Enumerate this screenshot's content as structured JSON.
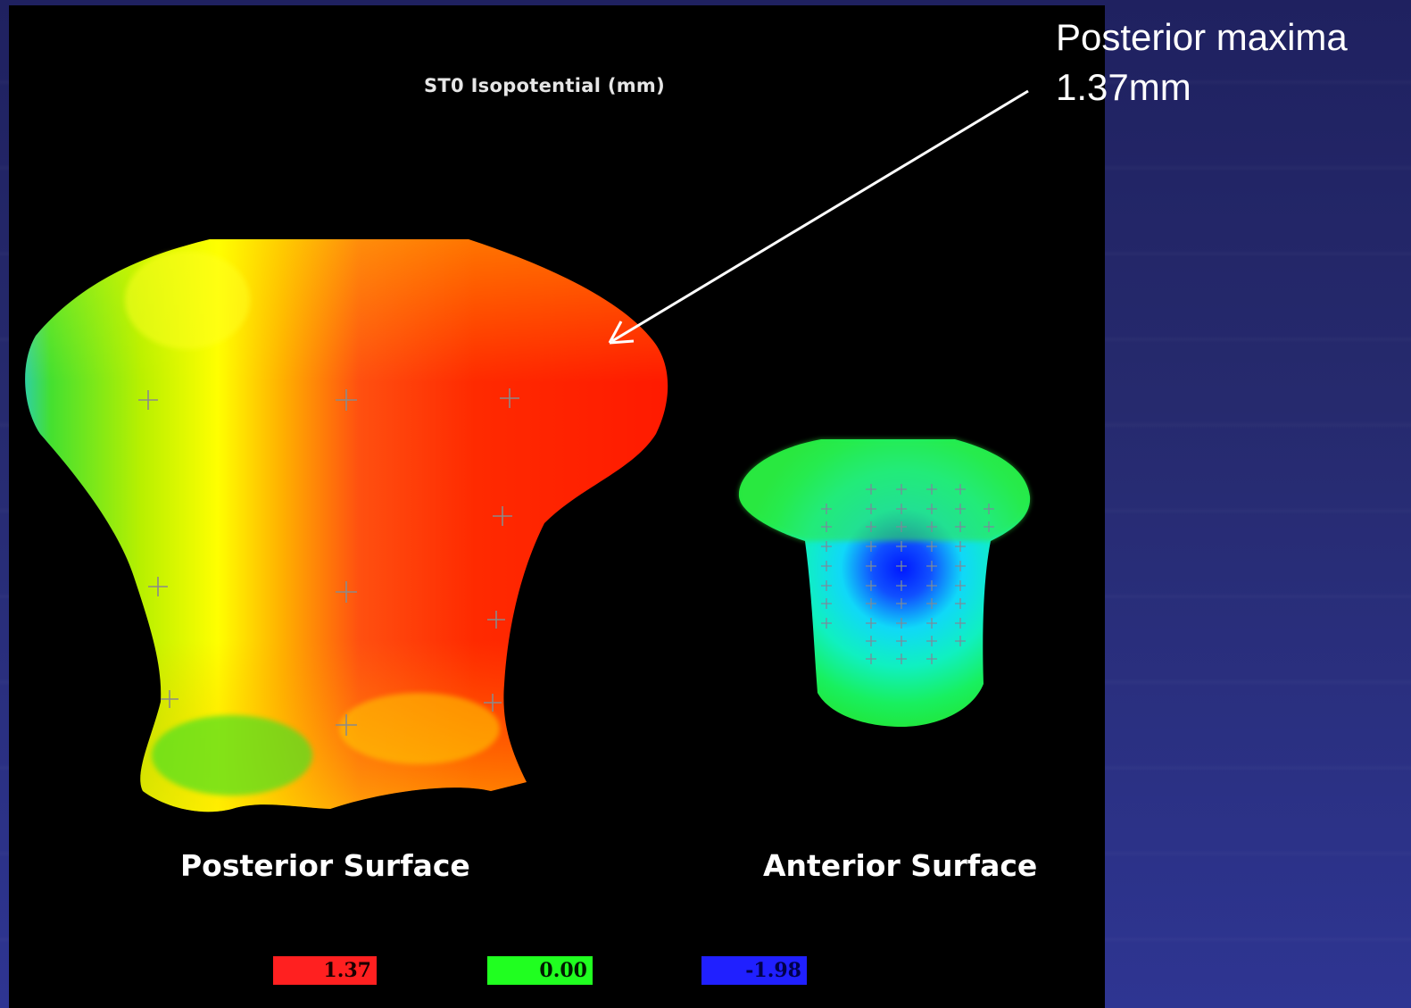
{
  "title": "ST0 Isopotential (mm)",
  "callout": {
    "line1": "Posterior maxima",
    "line2": "1.37mm"
  },
  "surfaces": {
    "posterior_label": "Posterior Surface",
    "anterior_label": "Anterior Surface"
  },
  "legend": [
    {
      "value": "1.37",
      "color": "#ff2020"
    },
    {
      "value": "0.00",
      "color": "#20ff20"
    },
    {
      "value": "-1.98",
      "color": "#2020ff"
    }
  ],
  "colors": {
    "panel_background": "#000000",
    "slide_background": "#262a6e",
    "max_color": "#ff2020",
    "zero_color": "#20ff20",
    "min_color": "#2020ff"
  }
}
